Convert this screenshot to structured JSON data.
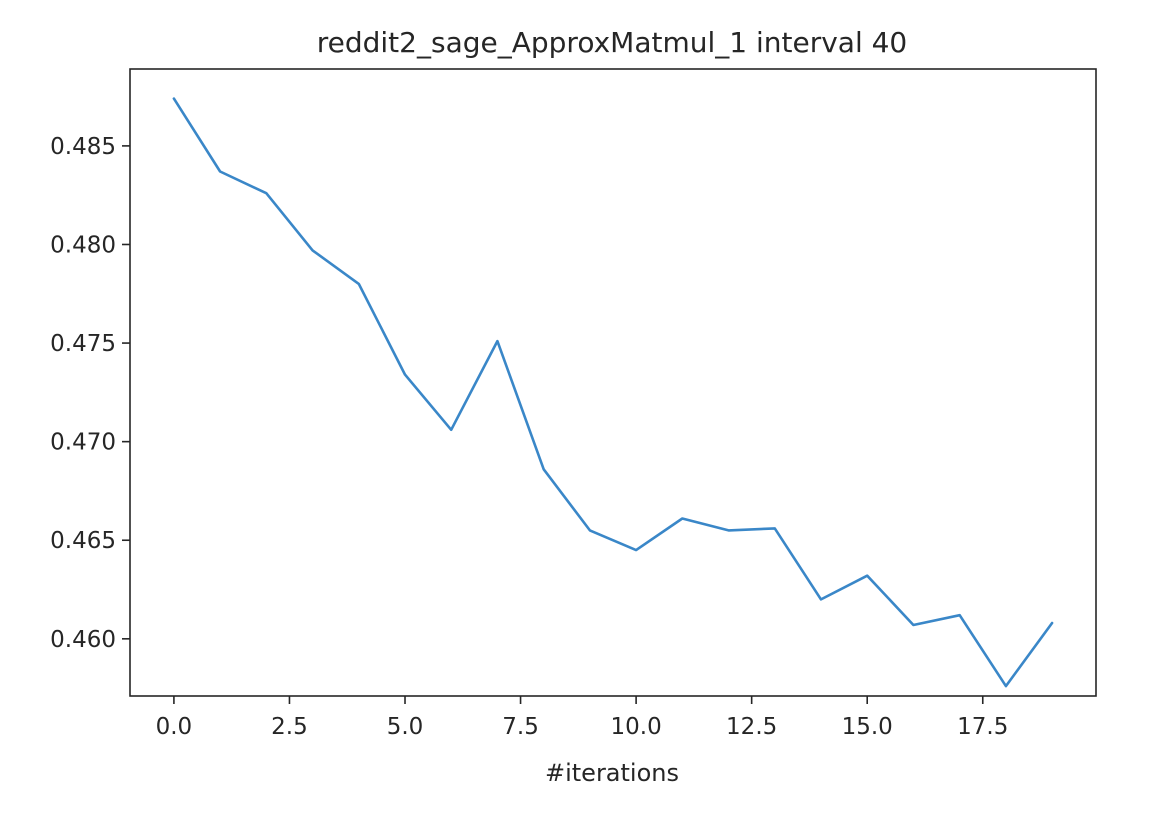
{
  "chart_data": {
    "type": "line",
    "title": "reddit2_sage_ApproxMatmul_1 interval 40",
    "xlabel": "#iterations",
    "ylabel": "",
    "xlim": [
      -0.95,
      19.95
    ],
    "ylim": [
      0.4571,
      0.4889
    ],
    "x_ticks": [
      0.0,
      2.5,
      5.0,
      7.5,
      10.0,
      12.5,
      15.0,
      17.5
    ],
    "x_tick_labels": [
      "0.0",
      "2.5",
      "5.0",
      "7.5",
      "10.0",
      "12.5",
      "15.0",
      "17.5"
    ],
    "y_ticks": [
      0.46,
      0.465,
      0.47,
      0.475,
      0.48,
      0.485
    ],
    "y_tick_labels": [
      "0.460",
      "0.465",
      "0.470",
      "0.475",
      "0.480",
      "0.485"
    ],
    "grid": false,
    "legend": "none",
    "line_color": "#3a87c8",
    "series": [
      {
        "x": [
          0,
          1,
          2,
          3,
          4,
          5,
          6,
          7,
          8,
          9,
          10,
          11,
          12,
          13,
          14,
          15,
          16,
          17,
          18,
          19
        ],
        "values": [
          0.4874,
          0.4837,
          0.4826,
          0.4797,
          0.478,
          0.4734,
          0.4706,
          0.4751,
          0.4686,
          0.4655,
          0.4645,
          0.4661,
          0.4655,
          0.4656,
          0.462,
          0.4632,
          0.4607,
          0.4612,
          0.4576,
          0.4608
        ]
      }
    ]
  }
}
